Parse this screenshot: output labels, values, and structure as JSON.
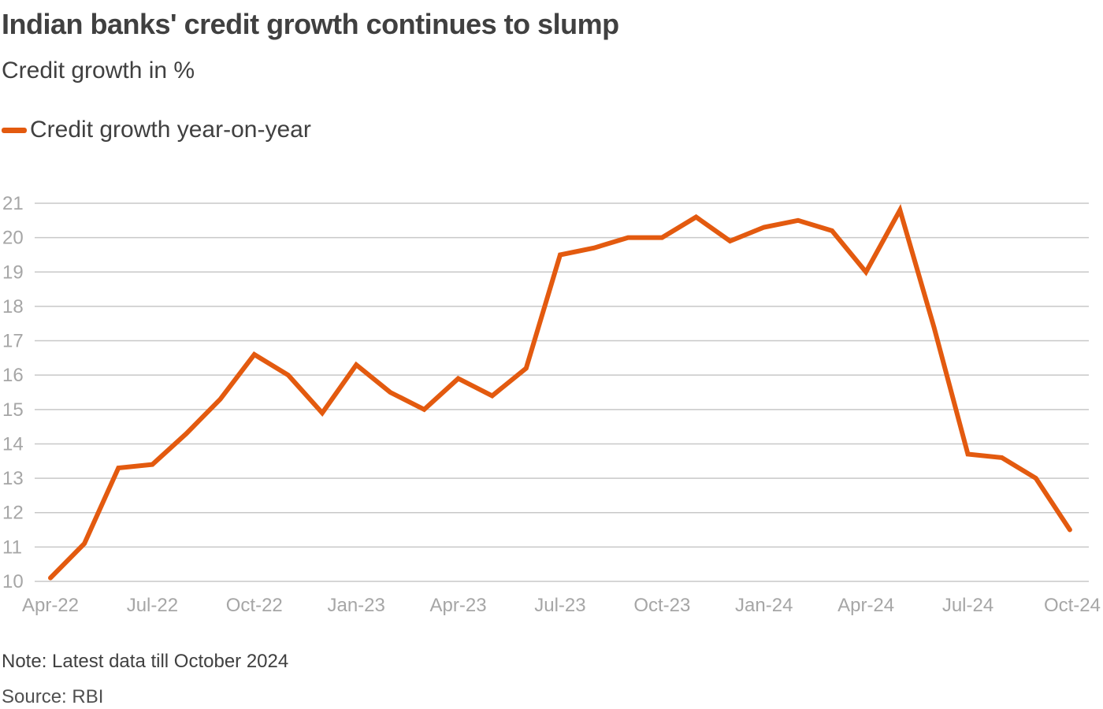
{
  "title": "Indian banks' credit growth continues to slump",
  "subtitle": "Credit growth in %",
  "note": "Note: Latest data till October 2024",
  "source": "Source: RBI",
  "colors": {
    "series": "#e35a0f",
    "grid": "#c8c8c8",
    "tick_text": "#a6a6a6",
    "text": "#404040"
  },
  "chart_data": {
    "type": "line",
    "title": "Indian banks' credit growth continues to slump",
    "subtitle": "Credit growth in %",
    "xlabel": "",
    "ylabel": "",
    "ylim": [
      10,
      21
    ],
    "y_ticks": [
      10,
      11,
      12,
      13,
      14,
      15,
      16,
      17,
      18,
      19,
      20,
      21
    ],
    "x_tick_labels": [
      "Apr-22",
      "Jul-22",
      "Oct-22",
      "Jan-23",
      "Apr-23",
      "Jul-23",
      "Oct-23",
      "Jan-24",
      "Apr-24",
      "Jul-24",
      "Oct-24"
    ],
    "grid": true,
    "legend_position": "top-left",
    "x": [
      "Apr-22",
      "May-22",
      "Jun-22",
      "Jul-22",
      "Aug-22",
      "Sep-22",
      "Oct-22",
      "Nov-22",
      "Dec-22",
      "Jan-23",
      "Feb-23",
      "Mar-23",
      "Apr-23",
      "May-23",
      "Jun-23",
      "Jul-23",
      "Aug-23",
      "Sep-23",
      "Oct-23",
      "Nov-23",
      "Dec-23",
      "Jan-24",
      "Feb-24",
      "Mar-24",
      "Apr-24",
      "May-24",
      "Jun-24",
      "Jul-24",
      "Aug-24",
      "Sep-24",
      "Oct-24"
    ],
    "series": [
      {
        "name": "Credit growth year-on-year",
        "values": [
          10.1,
          11.1,
          13.3,
          13.4,
          14.3,
          15.3,
          16.6,
          16.0,
          14.9,
          16.3,
          15.5,
          15.0,
          15.9,
          15.4,
          16.2,
          19.5,
          19.7,
          20.0,
          20.0,
          20.6,
          19.9,
          20.3,
          20.5,
          20.2,
          19.0,
          20.8,
          17.4,
          13.7,
          13.6,
          13.0,
          11.5
        ]
      }
    ]
  }
}
